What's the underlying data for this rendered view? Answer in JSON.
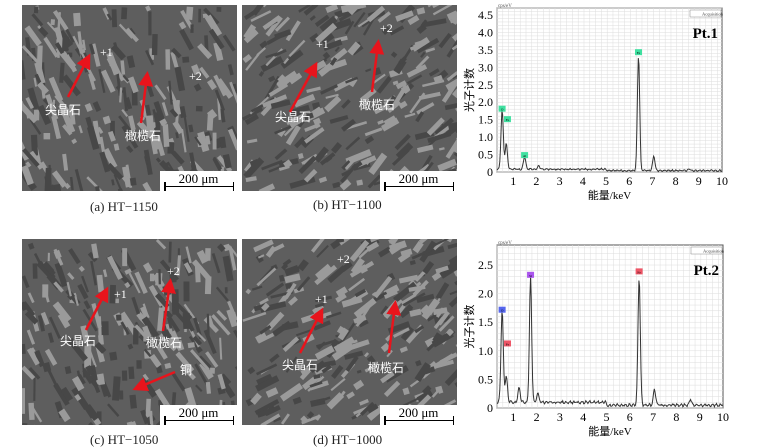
{
  "panels": [
    {
      "id": "a",
      "caption": "(a) HT−1150",
      "scale": "200 μm",
      "points": [
        "+1",
        "+2"
      ],
      "labels": [
        "尖晶石",
        "橄榄石"
      ]
    },
    {
      "id": "b",
      "caption": "(b) HT−1100",
      "scale": "200 μm",
      "points": [
        "+1",
        "+2"
      ],
      "labels": [
        "尖晶石",
        "橄榄石"
      ]
    },
    {
      "id": "c",
      "caption": "(c) HT−1050",
      "scale": "200 μm",
      "points": [
        "+1",
        "+2"
      ],
      "labels": [
        "尖晶石",
        "橄榄石",
        "铜"
      ]
    },
    {
      "id": "d",
      "caption": "(d) HT−1000",
      "scale": "200 μm",
      "points": [
        "+1",
        "+2"
      ],
      "labels": [
        "尖晶石",
        "橄榄石"
      ]
    }
  ],
  "colors": {
    "arrow": "#e8141c",
    "curve": "#333333",
    "grid": "#dddddd"
  },
  "chart_data": [
    {
      "type": "line",
      "title": "Pt.1",
      "xlabel": "能量/keV",
      "ylabel": "光子计数",
      "unit_label": "cps/eV",
      "legend": "Acquisition",
      "legend_position": "top-right",
      "xlim": [
        0.3,
        10
      ],
      "ylim": [
        0,
        4.7
      ],
      "xticks": [
        1,
        2,
        3,
        4,
        5,
        6,
        7,
        8,
        9,
        10
      ],
      "yticks": [
        0,
        0.5,
        1.0,
        1.5,
        2.0,
        2.5,
        3.0,
        3.5,
        4.0,
        4.5
      ],
      "peaks": [
        {
          "x": 0.52,
          "y": 1.7,
          "label": "O",
          "color": "#3fd6e0"
        },
        {
          "x": 0.7,
          "y": 0.75,
          "label": "Fe",
          "color": "#3fe08a"
        },
        {
          "x": 1.49,
          "y": 0.35,
          "label": "Al",
          "color": "#33cc33"
        },
        {
          "x": 6.4,
          "y": 3.3,
          "label": "Fe",
          "color": "#3fe08a"
        },
        {
          "x": 7.06,
          "y": 0.42,
          "label": ""
        },
        {
          "x": 2.1,
          "y": 0.1,
          "label": ""
        },
        {
          "x": 8.6,
          "y": 0.05,
          "label": ""
        }
      ],
      "peak_tags": [
        {
          "x": 0.52,
          "y": 1.8,
          "label": "O"
        },
        {
          "x": 0.75,
          "y": 1.5,
          "label": "Fe"
        },
        {
          "x": 1.49,
          "y": 0.47,
          "label": "Al"
        },
        {
          "x": 6.4,
          "y": 3.42,
          "label": "Fe"
        }
      ],
      "baseline": 0.08
    },
    {
      "type": "line",
      "title": "Pt.2",
      "xlabel": "能量/keV",
      "ylabel": "光子计数",
      "unit_label": "cps/eV",
      "legend": "Acquisition",
      "legend_position": "top-right",
      "xlim": [
        0.3,
        10
      ],
      "ylim": [
        0,
        2.85
      ],
      "xticks": [
        1,
        2,
        3,
        4,
        5,
        6,
        7,
        8,
        9,
        10
      ],
      "yticks": [
        0,
        0.5,
        1.0,
        1.5,
        2.0,
        2.5
      ],
      "peaks": [
        {
          "x": 0.52,
          "y": 1.6,
          "label": "O"
        },
        {
          "x": 0.7,
          "y": 0.45,
          "label": "Fe"
        },
        {
          "x": 1.25,
          "y": 0.25,
          "label": ""
        },
        {
          "x": 1.74,
          "y": 2.2,
          "label": "Si"
        },
        {
          "x": 2.05,
          "y": 0.15,
          "label": ""
        },
        {
          "x": 6.4,
          "y": 2.25,
          "label": "Fe"
        },
        {
          "x": 7.06,
          "y": 0.28,
          "label": ""
        },
        {
          "x": 8.6,
          "y": 0.1,
          "label": ""
        }
      ],
      "peak_tags": [
        {
          "x": 0.52,
          "y": 1.71,
          "label": "O",
          "color": "#5566ee"
        },
        {
          "x": 0.75,
          "y": 1.12,
          "label": "Fe",
          "color": "#ee5566"
        },
        {
          "x": 1.74,
          "y": 2.32,
          "label": "Si",
          "color": "#aa55ee"
        },
        {
          "x": 6.4,
          "y": 2.38,
          "label": "Fe",
          "color": "#ee5566"
        }
      ],
      "baseline": 0.1
    }
  ]
}
